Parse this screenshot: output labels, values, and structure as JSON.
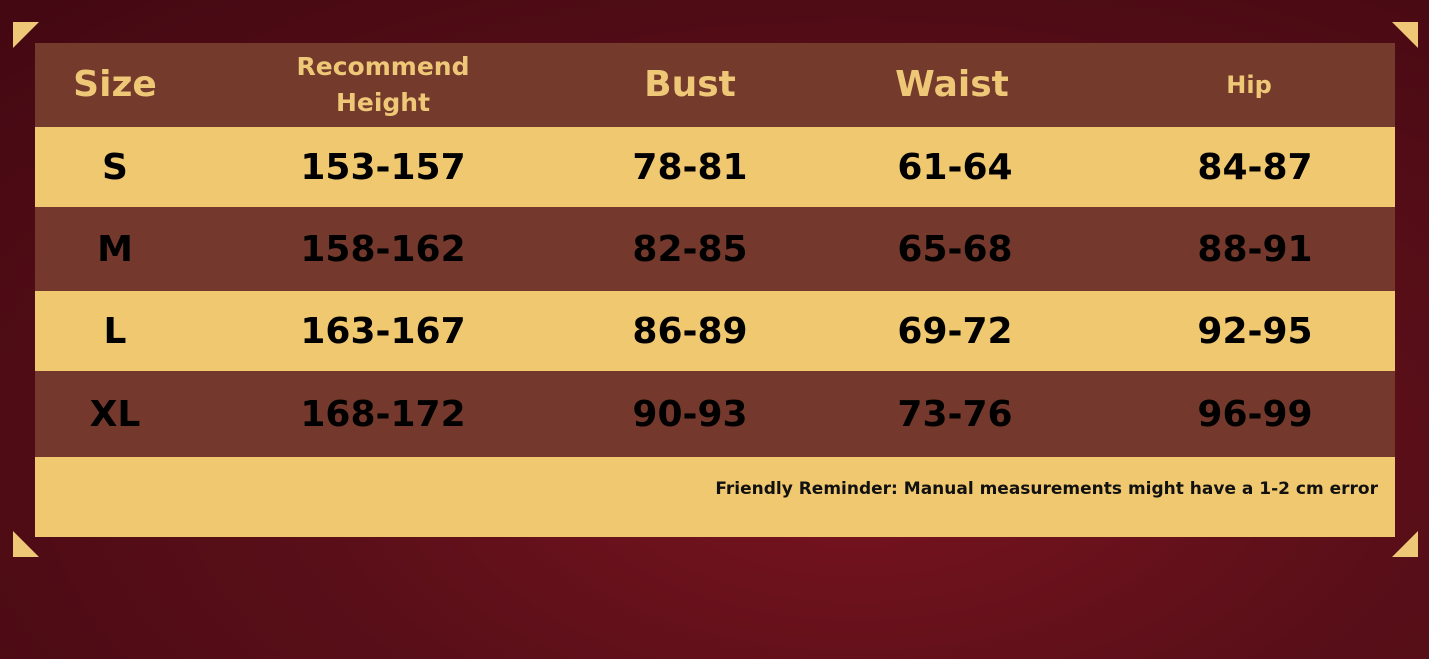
{
  "headers": [
    "Size",
    "Recommend Height",
    "Bust",
    "Waist",
    "Hip"
  ],
  "rows": [
    [
      "S",
      "153-157",
      "78-81",
      "61-64",
      "84-87"
    ],
    [
      "M",
      "158-162",
      "82-85",
      "65-68",
      "88-91"
    ],
    [
      "L",
      "163-167",
      "86-89",
      "69-72",
      "92-95"
    ],
    [
      "XL",
      "168-172",
      "90-93",
      "73-76",
      "96-99"
    ]
  ],
  "footer_note": "Friendly Reminder: Manual measurements might have a 1-2 cm error",
  "colors": {
    "background": "#4a0a14",
    "header": "#743a2c",
    "header_text": "#efc877",
    "row_light": "#f0c870",
    "row_dark": "#74392c"
  }
}
